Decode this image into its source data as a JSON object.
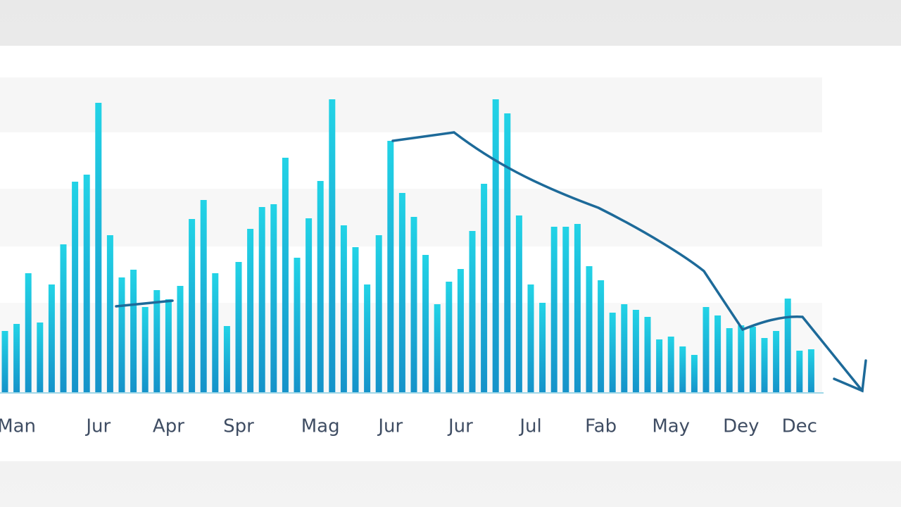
{
  "chart_data": {
    "type": "bar",
    "categories": [
      null,
      "Man",
      null,
      null,
      null,
      null,
      null,
      null,
      "Jur",
      null,
      null,
      null,
      null,
      null,
      "Apr",
      null,
      null,
      null,
      null,
      null,
      "Spr",
      null,
      null,
      null,
      null,
      null,
      null,
      "Mag",
      null,
      null,
      null,
      null,
      null,
      "Jur",
      null,
      null,
      null,
      null,
      null,
      "Jur",
      null,
      null,
      null,
      null,
      null,
      "Jul",
      null,
      null,
      null,
      null,
      null,
      "Fab",
      null,
      null,
      null,
      null,
      null,
      "May",
      null,
      null,
      null,
      null,
      null,
      "Dey",
      null,
      null,
      null,
      null,
      "Dec",
      null
    ],
    "values": [
      88,
      98,
      170,
      100,
      154,
      211,
      300,
      310,
      412,
      224,
      164,
      175,
      122,
      146,
      133,
      152,
      247,
      274,
      170,
      95,
      186,
      233,
      264,
      268,
      334,
      192,
      248,
      301,
      417,
      238,
      207,
      154,
      224,
      358,
      284,
      250,
      196,
      126,
      158,
      176,
      230,
      297,
      417,
      397,
      252,
      154,
      128,
      236,
      236,
      240,
      180,
      160,
      114,
      126,
      118,
      108,
      76,
      80,
      66,
      54,
      122,
      110,
      92,
      96,
      94,
      78,
      88,
      134,
      60,
      62
    ],
    "color": "#22d3e6",
    "ylim": [
      0,
      430
    ]
  }
}
